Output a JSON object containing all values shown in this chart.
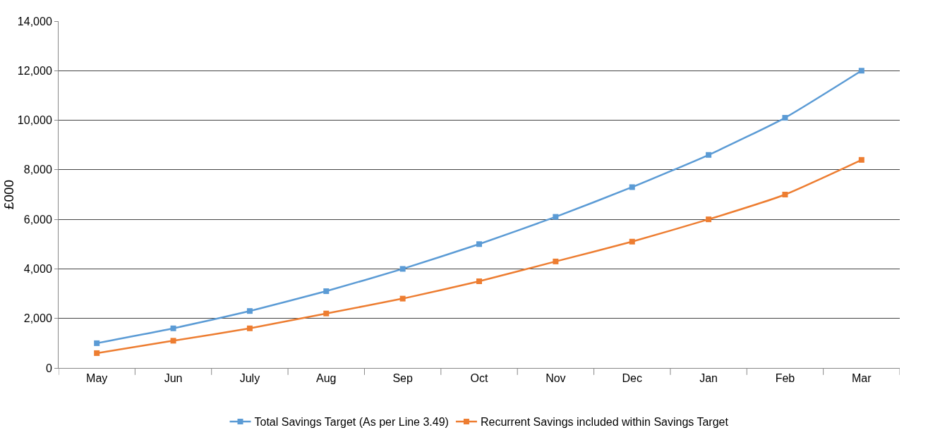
{
  "chart_data": {
    "type": "line",
    "ylabel": "£000",
    "categories": [
      "May",
      "Jun",
      "July",
      "Aug",
      "Sep",
      "Oct",
      "Nov",
      "Dec",
      "Jan",
      "Feb",
      "Mar"
    ],
    "series": [
      {
        "name": "Total Savings Target (As per Line 3.49)",
        "color": "#5b9bd5",
        "values": [
          1000,
          1600,
          2300,
          3100,
          4000,
          5000,
          6100,
          7300,
          8600,
          10100,
          12000
        ]
      },
      {
        "name": "Recurrent Savings included within Savings Target",
        "color": "#ed7d31",
        "values": [
          600,
          1100,
          1600,
          2200,
          2800,
          3500,
          4300,
          5100,
          6000,
          7000,
          8400
        ]
      }
    ],
    "ylim": [
      0,
      14000
    ],
    "yticks": [
      {
        "value": 0,
        "label": "0"
      },
      {
        "value": 2000,
        "label": "2,000"
      },
      {
        "value": 4000,
        "label": "4,000"
      },
      {
        "value": 6000,
        "label": "6,000"
      },
      {
        "value": 8000,
        "label": "8,000"
      },
      {
        "value": 10000,
        "label": "10,000"
      },
      {
        "value": 12000,
        "label": "12,000"
      },
      {
        "value": 14000,
        "label": "14,000"
      }
    ],
    "grid": "y",
    "legend": "bottom",
    "marker": "square",
    "line_style": "solid"
  }
}
